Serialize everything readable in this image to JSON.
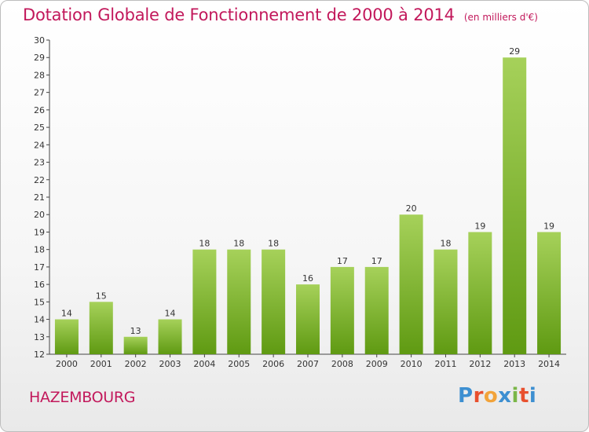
{
  "header": {
    "title": "Dotation Globale de Fonctionnement de 2000 à 2014",
    "unit": "(en milliers d'€)"
  },
  "footer": {
    "commune": "HAZEMBOURG",
    "logo": "Proxiti"
  },
  "colors": {
    "title": "#c2185b",
    "bar_light": "#a6d15a",
    "bar_dark": "#5f9a12"
  },
  "chart_data": {
    "type": "bar",
    "title": "Dotation Globale de Fonctionnement de 2000 à 2014",
    "xlabel": "",
    "ylabel": "(en milliers d'€)",
    "ylim": [
      12,
      30
    ],
    "yticks": [
      12,
      13,
      14,
      15,
      16,
      17,
      18,
      19,
      20,
      21,
      22,
      23,
      24,
      25,
      26,
      27,
      28,
      29,
      30
    ],
    "grid": false,
    "categories": [
      "2000",
      "2001",
      "2002",
      "2003",
      "2004",
      "2005",
      "2006",
      "2007",
      "2008",
      "2009",
      "2010",
      "2011",
      "2012",
      "2013",
      "2014"
    ],
    "values": [
      14,
      15,
      13,
      14,
      18,
      18,
      18,
      16,
      17,
      17,
      20,
      18,
      19,
      29,
      19
    ]
  }
}
